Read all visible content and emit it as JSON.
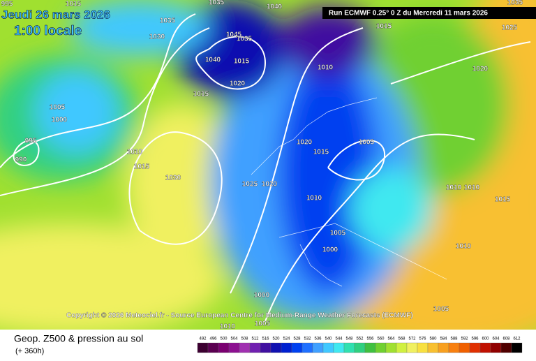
{
  "header": {
    "date": "Jeudi 26 mars 2026",
    "time": "1:00 locale",
    "run": "Run ECMWF 0.25° 0 Z du Mercredi 11 mars 2026"
  },
  "map": {
    "isobar_labels": [
      995,
      1015,
      1035,
      1040,
      1035,
      1030,
      1045,
      1035,
      1040,
      1015,
      1015,
      1020,
      1010,
      1015,
      1025,
      1020,
      1005,
      1000,
      995,
      990,
      1010,
      1015,
      1030,
      1020,
      1015,
      1005,
      1025,
      1020,
      1010,
      1005,
      1000,
      1010,
      1010,
      1015,
      1010,
      1000,
      1005,
      1005,
      1010,
      1035
    ]
  },
  "credit": "Copyright © 2026 Meteociel.fr - Source European Centre for Medium-Range Weather Forecasts (ECMWF)",
  "footer": {
    "title": "Geop. Z500 & pression au sol",
    "lead": "(+ 360h)"
  },
  "colorbar": {
    "ticks": [
      492,
      496,
      500,
      504,
      508,
      512,
      516,
      520,
      524,
      528,
      532,
      536,
      540,
      544,
      548,
      552,
      556,
      560,
      564,
      568,
      572,
      576,
      580,
      584,
      588,
      592,
      596,
      600,
      604,
      608,
      612
    ],
    "colors": [
      "#3c0030",
      "#5a0050",
      "#7a0070",
      "#8c1090",
      "#a030b0",
      "#7020b0",
      "#4010a0",
      "#1010b0",
      "#0020d0",
      "#0040f0",
      "#2070ff",
      "#40a0ff",
      "#40c8ff",
      "#40e8f0",
      "#30e0b0",
      "#30d080",
      "#40c040",
      "#70d030",
      "#a0e030",
      "#d0f040",
      "#f0f060",
      "#f8e040",
      "#f8c030",
      "#f8a020",
      "#f88010",
      "#f06000",
      "#e03000",
      "#c01000",
      "#900000",
      "#500000",
      "#000000"
    ]
  }
}
